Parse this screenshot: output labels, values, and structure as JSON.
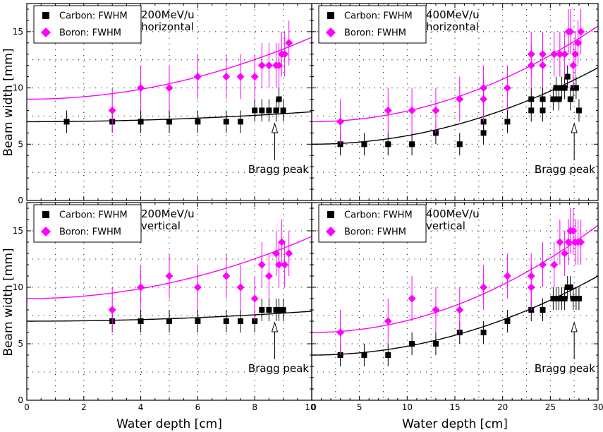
{
  "figure": {
    "ylabel": "Beam width [mm]",
    "xlabel": "Water depth [cm]",
    "colors": {
      "carbon": "#000000",
      "boron": "#ff00ff",
      "frame": "#000000"
    }
  },
  "chart_data": [
    {
      "type": "scatter",
      "panel": "top-left",
      "annotation_lines": [
        "200MeV/u",
        "horizontal"
      ],
      "bragg_label": "Bragg peak",
      "bragg_x": 8.7,
      "xlim": [
        0,
        10
      ],
      "ylim": [
        0,
        17.5
      ],
      "xticks": [
        0,
        2,
        4,
        6,
        8,
        10
      ],
      "yticks": [
        0,
        5,
        10,
        15
      ],
      "grid": true,
      "legend_position": "top-left",
      "series": [
        {
          "name": "Carbon: FWHM",
          "marker": "square",
          "color": "#000000",
          "x": [
            1.4,
            3.0,
            4.0,
            5.0,
            6.0,
            7.0,
            7.5,
            8.0,
            8.25,
            8.5,
            8.75,
            8.85,
            9.0
          ],
          "y": [
            7,
            7,
            7,
            7,
            7,
            7,
            7,
            8,
            8,
            8,
            8,
            9,
            8
          ],
          "err": [
            1,
            1,
            1,
            1,
            1,
            1,
            1,
            1,
            1,
            1,
            1,
            1,
            1
          ]
        },
        {
          "name": "Boron: FWHM",
          "marker": "diamond",
          "color": "#ff00ff",
          "x": [
            3.0,
            4.0,
            5.0,
            6.0,
            7.0,
            7.5,
            8.0,
            8.25,
            8.5,
            8.75,
            8.85,
            8.95,
            9.05,
            9.2
          ],
          "y": [
            8,
            10,
            10,
            11,
            11,
            11,
            11,
            12,
            12,
            12,
            12,
            13,
            13,
            14
          ],
          "err": [
            2,
            2,
            2,
            2,
            2,
            2,
            2,
            2,
            2,
            2,
            2,
            2,
            2,
            2
          ]
        }
      ]
    },
    {
      "type": "scatter",
      "panel": "top-right",
      "annotation_lines": [
        "400MeV/u",
        "horizontal"
      ],
      "bragg_label": "Bragg peak",
      "bragg_x": 27.5,
      "xlim": [
        0,
        30
      ],
      "ylim": [
        0,
        17.5
      ],
      "xticks": [
        0,
        5,
        10,
        15,
        20,
        25,
        30
      ],
      "yticks": [
        0,
        5,
        10,
        15
      ],
      "grid": true,
      "legend_position": "top-left",
      "series": [
        {
          "name": "Carbon: FWHM",
          "marker": "square",
          "color": "#000000",
          "x": [
            3,
            5.5,
            8,
            10.5,
            13,
            15.5,
            18,
            18,
            20.5,
            23,
            23,
            24.2,
            24.2,
            25.3,
            25.6,
            25.9,
            26.2,
            26.5,
            26.8,
            27.1,
            27.4,
            27.7,
            28.0
          ],
          "y": [
            5,
            5,
            5,
            5,
            6,
            5,
            6,
            7,
            7,
            8,
            9,
            8,
            9,
            9,
            10,
            9,
            10,
            10,
            11,
            9,
            10,
            10,
            8
          ],
          "err": [
            1,
            1,
            1,
            1,
            1,
            1,
            1,
            1,
            1,
            1,
            1,
            1,
            1,
            1,
            1,
            1,
            1,
            1,
            1,
            1,
            1,
            1,
            1
          ]
        },
        {
          "name": "Boron: FWHM",
          "marker": "diamond",
          "color": "#ff00ff",
          "x": [
            3,
            8,
            10.5,
            13,
            15.5,
            18,
            18,
            20.5,
            23,
            23,
            24.2,
            24.2,
            25.4,
            26.0,
            26.5,
            26.9,
            27.1,
            27.4,
            27.6,
            27.9,
            28.2
          ],
          "y": [
            7,
            8,
            8,
            8,
            9,
            9,
            10,
            10,
            12,
            13,
            12,
            13,
            13,
            13,
            13,
            15,
            15,
            12,
            13,
            14,
            15
          ],
          "err": [
            2,
            2,
            2,
            2,
            2,
            2,
            2,
            2,
            2,
            2,
            2,
            2,
            2,
            2,
            2,
            2,
            2,
            2,
            2,
            2,
            2
          ]
        }
      ]
    },
    {
      "type": "scatter",
      "panel": "bottom-left",
      "annotation_lines": [
        "200MeV/u",
        "vertical"
      ],
      "bragg_label": "Bragg peak",
      "bragg_x": 8.7,
      "xlim": [
        0,
        10
      ],
      "ylim": [
        0,
        17.5
      ],
      "xticks": [
        0,
        2,
        4,
        6,
        8,
        10
      ],
      "yticks": [
        0,
        5,
        10,
        15
      ],
      "grid": true,
      "legend_position": "top-left",
      "series": [
        {
          "name": "Carbon: FWHM",
          "marker": "square",
          "color": "#000000",
          "x": [
            3.0,
            4.0,
            5.0,
            6.0,
            7.0,
            7.5,
            8.0,
            8.25,
            8.5,
            8.75,
            8.85,
            9.0
          ],
          "y": [
            7,
            7,
            7,
            7,
            7,
            7,
            7,
            8,
            8,
            8,
            8,
            8
          ],
          "err": [
            1,
            1,
            1,
            1,
            1,
            1,
            1,
            1,
            1,
            1,
            1,
            1
          ]
        },
        {
          "name": "Boron: FWHM",
          "marker": "diamond",
          "color": "#ff00ff",
          "x": [
            3.0,
            4.0,
            5.0,
            6.0,
            7.0,
            7.5,
            8.0,
            8.25,
            8.5,
            8.75,
            8.85,
            8.95,
            9.05,
            9.2
          ],
          "y": [
            8,
            10,
            11,
            10,
            11,
            10,
            9,
            12,
            11,
            13,
            12,
            14,
            12,
            13
          ],
          "err": [
            2,
            2,
            2,
            2,
            2,
            2,
            2,
            2,
            2,
            2,
            2,
            2,
            2,
            2
          ]
        }
      ]
    },
    {
      "type": "scatter",
      "panel": "bottom-right",
      "annotation_lines": [
        "400MeV/u",
        "vertical"
      ],
      "bragg_label": "Bragg peak",
      "bragg_x": 27.5,
      "xlim": [
        0,
        30
      ],
      "ylim": [
        0,
        17.5
      ],
      "xticks": [
        0,
        5,
        10,
        15,
        20,
        25,
        30
      ],
      "yticks": [
        0,
        5,
        10,
        15
      ],
      "grid": true,
      "legend_position": "top-left",
      "series": [
        {
          "name": "Carbon: FWHM",
          "marker": "square",
          "color": "#000000",
          "x": [
            3,
            5.5,
            8,
            10.5,
            13,
            15.5,
            18,
            20.5,
            23,
            24.2,
            25.3,
            25.6,
            25.9,
            26.2,
            26.5,
            26.8,
            27.1,
            27.4,
            27.7,
            28.0
          ],
          "y": [
            4,
            4,
            4,
            5,
            5,
            6,
            6,
            7,
            8,
            8,
            9,
            9,
            9,
            9,
            9,
            10,
            10,
            9,
            9,
            9
          ],
          "err": [
            1,
            1,
            1,
            1,
            1,
            1,
            1,
            1,
            1,
            1,
            1,
            1,
            1,
            1,
            1,
            1,
            1,
            1,
            1,
            1
          ]
        },
        {
          "name": "Boron: FWHM",
          "marker": "diamond",
          "color": "#ff00ff",
          "x": [
            3,
            8,
            10.5,
            13,
            15.5,
            18,
            20.5,
            23,
            23,
            24.2,
            25.4,
            26.0,
            26.5,
            26.9,
            27.1,
            27.4,
            27.6,
            27.9,
            28.2
          ],
          "y": [
            6,
            7,
            9,
            8,
            8,
            10,
            11,
            10,
            11,
            12,
            12,
            14,
            13,
            14,
            15,
            15,
            14,
            14,
            14
          ],
          "err": [
            2,
            2,
            2,
            2,
            2,
            2,
            2,
            2,
            2,
            2,
            2,
            2,
            2,
            2,
            2,
            2,
            2,
            2,
            2
          ]
        }
      ]
    }
  ]
}
